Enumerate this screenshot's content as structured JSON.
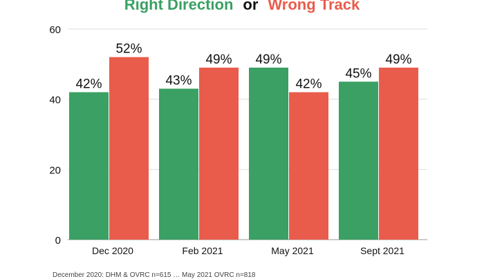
{
  "title": {
    "part1": "Right Direction",
    "connector": "or",
    "part2": "Wrong Track"
  },
  "colors": {
    "right": "#3aa063",
    "wrong": "#e95c4c",
    "grid": "#dddddd",
    "text": "#111111"
  },
  "chart_data": {
    "type": "bar",
    "title": "Right Direction or Wrong Track",
    "categories": [
      "Dec 2020",
      "Feb 2021",
      "May 2021",
      "Sept 2021"
    ],
    "series": [
      {
        "name": "Right Direction",
        "values": [
          42,
          43,
          49,
          45
        ],
        "labels": [
          "42%",
          "43%",
          "49%",
          "45%"
        ]
      },
      {
        "name": "Wrong Track",
        "values": [
          52,
          49,
          42,
          49
        ],
        "labels": [
          "52%",
          "49%",
          "42%",
          "49%"
        ]
      }
    ],
    "yticks": [
      "0",
      "20",
      "40",
      "60"
    ],
    "ylim": [
      0,
      60
    ],
    "grid": true,
    "xlabel": "",
    "ylabel": ""
  },
  "footnote": "December 2020: DHM & OVRC n=615 … May 2021 OVRC n=818"
}
